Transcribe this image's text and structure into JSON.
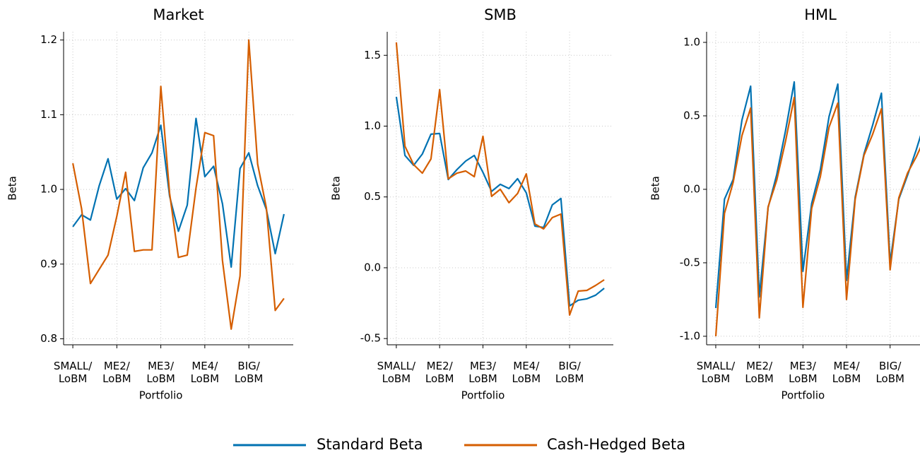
{
  "chart_data": [
    {
      "type": "line",
      "title": "Market",
      "xlabel": "Portfolio",
      "ylabel": "Beta",
      "categories": [
        "SMALL/\nLoBM",
        null,
        null,
        null,
        null,
        "ME2/\nLoBM",
        null,
        null,
        null,
        null,
        "ME3/\nLoBM",
        null,
        null,
        null,
        null,
        "ME4/\nLoBM",
        null,
        null,
        null,
        null,
        "BIG/\nLoBM",
        null,
        null,
        null,
        null
      ],
      "series": [
        {
          "color": "#0072b2",
          "values": [
            0.95,
            0.966,
            0.959,
            1.005,
            1.041,
            0.987,
            1.001,
            0.985,
            1.029,
            1.049,
            1.086,
            0.991,
            0.944,
            0.979,
            1.095,
            1.017,
            1.031,
            0.981,
            0.896,
            1.028,
            1.049,
            1.005,
            0.973,
            0.914,
            0.967
          ]
        },
        {
          "color": "#d55e00",
          "values": [
            1.035,
            0.974,
            0.874,
            0.893,
            0.912,
            0.964,
            1.023,
            0.917,
            0.919,
            0.919,
            1.138,
            0.995,
            0.909,
            0.912,
            1.002,
            1.076,
            1.072,
            0.905,
            0.813,
            0.884,
            1.2,
            1.034,
            0.975,
            0.838,
            0.854
          ]
        }
      ],
      "ylim": [
        0.792,
        1.211
      ],
      "yticks": [
        0.8,
        0.9,
        {
          "value": 1,
          "label": "1.0"
        },
        1.1,
        1.2
      ],
      "grid": true
    },
    {
      "type": "line",
      "title": "SMB",
      "xlabel": "Portfolio",
      "ylabel": "Beta",
      "categories": [
        "SMALL/\nLoBM",
        null,
        null,
        null,
        null,
        "ME2/\nLoBM",
        null,
        null,
        null,
        null,
        "ME3/\nLoBM",
        null,
        null,
        null,
        null,
        "ME4/\nLoBM",
        null,
        null,
        null,
        null,
        "BIG/\nLoBM",
        null,
        null,
        null,
        null
      ],
      "series": [
        {
          "color": "#0072b2",
          "values": [
            1.207,
            0.793,
            0.723,
            0.803,
            0.943,
            0.948,
            0.623,
            0.693,
            0.753,
            0.793,
            0.673,
            0.539,
            0.589,
            0.559,
            0.629,
            0.529,
            0.294,
            0.284,
            0.444,
            0.489,
            -0.269,
            -0.229,
            -0.219,
            -0.194,
            -0.145
          ]
        },
        {
          "color": "#d55e00",
          "values": [
            1.591,
            0.858,
            0.728,
            0.668,
            0.768,
            1.257,
            0.628,
            0.668,
            0.683,
            0.643,
            0.928,
            0.504,
            0.554,
            0.459,
            0.524,
            0.663,
            0.309,
            0.274,
            0.354,
            0.379,
            -0.334,
            -0.165,
            -0.16,
            -0.125,
            -0.085
          ]
        }
      ],
      "ylim": [
        -0.544,
        1.666
      ],
      "yticks": [
        -0.5,
        {
          "value": 0,
          "label": "0.0"
        },
        0.5,
        {
          "value": 1,
          "label": "1.0"
        },
        1.5
      ],
      "grid": true
    },
    {
      "type": "line",
      "title": "HML",
      "xlabel": "Portfolio",
      "ylabel": "Beta",
      "categories": [
        "SMALL/\nLoBM",
        null,
        null,
        null,
        null,
        "ME2/\nLoBM",
        null,
        null,
        null,
        null,
        "ME3/\nLoBM",
        null,
        null,
        null,
        null,
        "ME4/\nLoBM",
        null,
        null,
        null,
        null,
        "BIG/\nLoBM",
        null,
        null,
        null,
        null
      ],
      "series": [
        {
          "color": "#0072b2",
          "values": [
            -0.808,
            -0.067,
            0.067,
            0.471,
            0.702,
            -0.731,
            -0.125,
            0.101,
            0.399,
            0.731,
            -0.558,
            -0.096,
            0.135,
            0.495,
            0.716,
            -0.62,
            -0.053,
            0.24,
            0.437,
            0.654,
            -0.5,
            -0.067,
            0.096,
            0.269,
            0.46
          ]
        },
        {
          "color": "#d55e00",
          "values": [
            -1.0,
            -0.163,
            0.048,
            0.365,
            0.553,
            -0.875,
            -0.12,
            0.063,
            0.327,
            0.625,
            -0.803,
            -0.13,
            0.087,
            0.423,
            0.587,
            -0.75,
            -0.067,
            0.231,
            0.375,
            0.548,
            -0.548,
            -0.058,
            0.111,
            0.221,
            0.35
          ]
        }
      ],
      "ylim": [
        -1.058,
        1.072
      ],
      "yticks": [
        {
          "value": -1,
          "label": "-1.0"
        },
        -0.5,
        {
          "value": 0,
          "label": "0.0"
        },
        0.5,
        {
          "value": 1,
          "label": "1.0"
        }
      ],
      "grid": true
    }
  ],
  "legend": [
    {
      "name": "Standard Beta",
      "color": "#0072b2"
    },
    {
      "name": "Cash-Hedged Beta",
      "color": "#d55e00"
    }
  ]
}
